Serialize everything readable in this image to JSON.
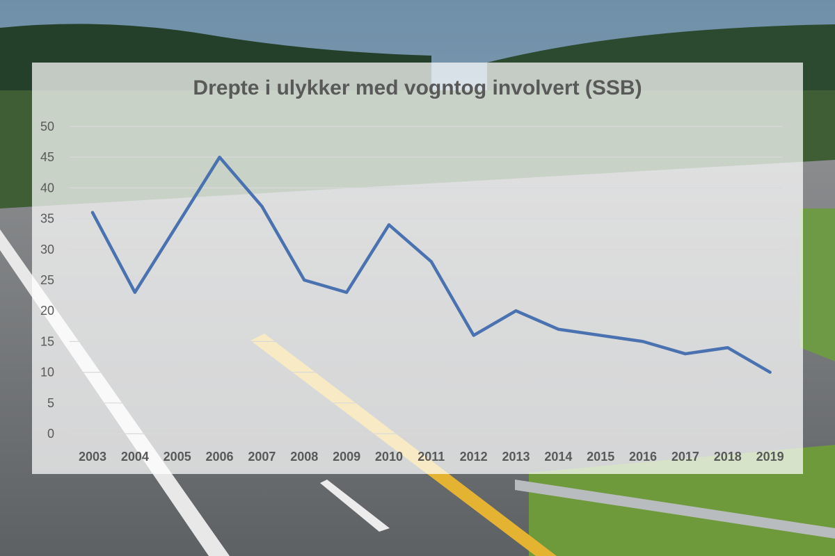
{
  "chart_data": {
    "type": "line",
    "title": "Drepte i ulykker med vogntog involvert (SSB)",
    "xlabel": "",
    "ylabel": "",
    "ylim": [
      0,
      50
    ],
    "yticks": [
      0,
      5,
      10,
      15,
      20,
      25,
      30,
      35,
      40,
      45,
      50
    ],
    "grid": true,
    "legend": "none",
    "categories": [
      "2003",
      "2004",
      "2005",
      "2006",
      "2007",
      "2008",
      "2009",
      "2010",
      "2011",
      "2012",
      "2013",
      "2014",
      "2015",
      "2016",
      "2017",
      "2018",
      "2019"
    ],
    "series": [
      {
        "values": [
          36,
          23,
          34,
          45,
          37,
          25,
          23,
          34,
          28,
          16,
          20,
          17,
          16,
          15,
          13,
          14,
          10
        ]
      }
    ],
    "colors": {
      "line": "#4a72b0",
      "grid": "#d9d9d9",
      "text": "#595959"
    }
  }
}
